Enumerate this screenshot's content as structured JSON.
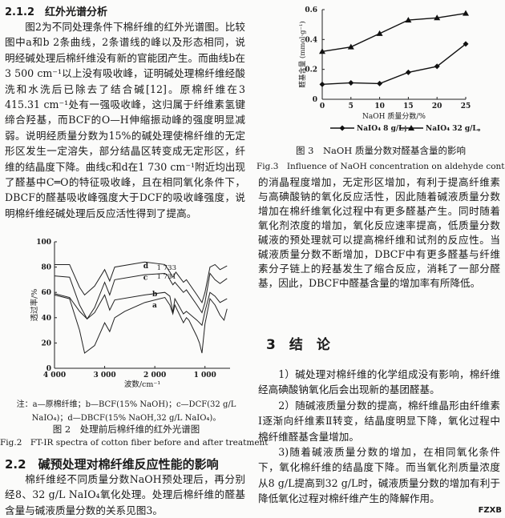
{
  "left": {
    "sec212_title": "2.1.2　红外光谱分析",
    "sec212_para": "图2为不同处理条件下棉纤维的红外光谱图。比较图中a和b 2条曲线，2条谱线的峰以及形态相同，说明经碱处理后棉纤维没有新的官能团产生。而曲线b在3 500 cm⁻¹以上没有吸收峰，证明碱处理棉纤维经酸洗和水洗后已除去了结合碱[12]。原棉纤维在3 415.31 cm⁻¹处有一强吸收峰，这归属于纤维素氢键缔合羟基，而BCF的O—H伸缩振动峰的强度明显减弱。说明经质量分数为15%的碱处理使棉纤维的无定形区发生一定溶失，部分结晶区转变成无定形区，纤维的结晶度下降。曲线c和d在1 730 cm⁻¹附近均出现了醛基中C═O的特征吸收峰，且在相同氧化条件下，DBCF的醛基吸收峰强度大于DCF的吸收峰强度，说明棉纤维经碱处理后反应活性得到了提高。",
    "fig2_note_1": "注：a—原棉纤维；b—BCF(15% NaOH)；c—DCF(32 g/L",
    "fig2_note_2": "NaIO₄)；d—DBCF(15% NaOH,32 g/L NaIO₄)。",
    "fig2_caption_cn": "图 2　处理前后棉纤维的红外光谱图",
    "fig2_caption_en": "Fig.2　FT-IR spectra of cotton fiber before and after treatment",
    "sec22_title": "2.2　碱预处理对棉纤维反应性能的影响",
    "sec22_para": "棉纤维经不同质量分数NaOH预处理后，再分别经8、32 g/L NaIO₄氧化处理。处理后棉纤维的醛基含量与碱液质量分数的关系见图3。"
  },
  "right": {
    "fig3_caption_cn": "图 3　NaOH 质量分数对醛基含量的影响",
    "fig3_caption_en": "Fig.3　Influence of NaOH concentration on aldehyde content",
    "para_cont": "的消晶程度增加，无定形区增加，有利于提高纤维素与高碘酸钠的氧化反应活性，因此随着碱液质量分数增加在棉纤维氧化过程中有更多醛基产生。同时随着氧化剂浓度的增加，氧化反应速率提高，低质量分数碱液的预处理就可以提高棉纤维和试剂的反应性。当碱液质量分数不断增加，DBCF中有更多醛基与纤维素分子链上的羟基发生了缩合反应，消耗了一部分醛基，因此，DBCF中醛基含量的增加率有所降低。",
    "sec3_title": "3　结　论",
    "conclusions": [
      "1）碱处理对棉纤维的化学组成没有影响，棉纤维经高碘酸钠氧化后会出现新的基团醛基。",
      "2）随碱液质量分数的提高，棉纤维晶形由纤维素Ⅰ逐渐向纤维素Ⅱ转变，结晶度明显下降，氧化过程中棉纤维醛基含量增加。",
      "3)随着碱液质量分数的增加，在相同氧化条件下，氧化棉纤维的结晶度下降。而当氧化剂质量浓度从8 g/L提高到32 g/L时，碱液质量分数的增加有利于降低氧化过程对棉纤维产生的降解作用。"
    ],
    "logo": "FZXB"
  },
  "chart_data": [
    {
      "type": "line",
      "title": "",
      "xlabel": "波数/cm⁻¹",
      "ylabel": "透过率/%",
      "xlim": [
        4000,
        500
      ],
      "ylim": [
        0,
        100
      ],
      "xticks": [
        "4 000",
        "3 000",
        "2 000",
        "1 000"
      ],
      "xtick_values": [
        4000,
        3000,
        2000,
        1000
      ],
      "yticks": [
        "0",
        "20",
        "40",
        "60",
        "80",
        "100"
      ],
      "annotations": [
        "1 733",
        "1 731"
      ],
      "series": [
        {
          "name": "a",
          "x": [
            4000,
            3700,
            3500,
            3400,
            3200,
            3000,
            2900,
            2800,
            2600,
            2200,
            1800,
            1700,
            1640,
            1600,
            1430,
            1370,
            1320,
            1160,
            1110,
            1060,
            1000,
            900,
            800,
            700,
            620,
            560
          ],
          "y": [
            58,
            55,
            30,
            12,
            18,
            36,
            29,
            40,
            45,
            52,
            56,
            50,
            43,
            50,
            36,
            40,
            38,
            25,
            20,
            12,
            35,
            55,
            50,
            42,
            38,
            47
          ]
        },
        {
          "name": "b",
          "x": [
            4000,
            3700,
            3500,
            3350,
            3200,
            3000,
            2900,
            2800,
            2200,
            1800,
            1700,
            1640,
            1600,
            1430,
            1370,
            1160,
            1060,
            1000,
            900,
            800,
            700,
            560
          ],
          "y": [
            59,
            56,
            45,
            39,
            44,
            58,
            46,
            54,
            58,
            60,
            57,
            44,
            55,
            43,
            45,
            38,
            34,
            45,
            60,
            57,
            52,
            55
          ]
        },
        {
          "name": "c",
          "x": [
            4000,
            3700,
            3500,
            3350,
            3200,
            3000,
            2900,
            2800,
            2200,
            1800,
            1731,
            1700,
            1640,
            1600,
            1430,
            1370,
            1160,
            1060,
            1000,
            900,
            800,
            700,
            560
          ],
          "y": [
            73,
            72,
            50,
            39,
            48,
            68,
            58,
            70,
            74,
            75,
            73,
            70,
            66,
            68,
            60,
            62,
            50,
            44,
            52,
            75,
            70,
            67,
            71
          ]
        },
        {
          "name": "d",
          "x": [
            4000,
            3700,
            3500,
            3400,
            3200,
            3000,
            2900,
            2800,
            2200,
            1800,
            1733,
            1700,
            1640,
            1580,
            1430,
            1370,
            1160,
            1060,
            1000,
            900,
            800,
            700,
            560
          ],
          "y": [
            82,
            82,
            64,
            58,
            65,
            78,
            69,
            80,
            84,
            82,
            78,
            76,
            72,
            76,
            68,
            70,
            58,
            52,
            60,
            80,
            82,
            78,
            81
          ]
        }
      ]
    },
    {
      "type": "line",
      "title": "",
      "xlabel": "NaOH 质量分数/%",
      "ylabel": "醛基含量 (mmol·g⁻¹)",
      "x": [
        0,
        5,
        10,
        15,
        20,
        25
      ],
      "xlim": [
        0,
        25
      ],
      "ylim": [
        0,
        0.6
      ],
      "xticks": [
        "0",
        "5",
        "10",
        "15",
        "20",
        "25"
      ],
      "yticks": [
        "0",
        "0.2",
        "0.4",
        "0.6"
      ],
      "legend_position": "bottom",
      "series": [
        {
          "name": "NaIO₄ 8 g/L；",
          "marker": "diamond",
          "values": [
            0.1,
            0.11,
            0.105,
            0.18,
            0.22,
            0.37
          ]
        },
        {
          "name": "NaIO₄ 32 g/L。",
          "marker": "triangle",
          "values": [
            0.32,
            0.35,
            0.44,
            0.53,
            0.545,
            0.575
          ]
        }
      ]
    }
  ]
}
